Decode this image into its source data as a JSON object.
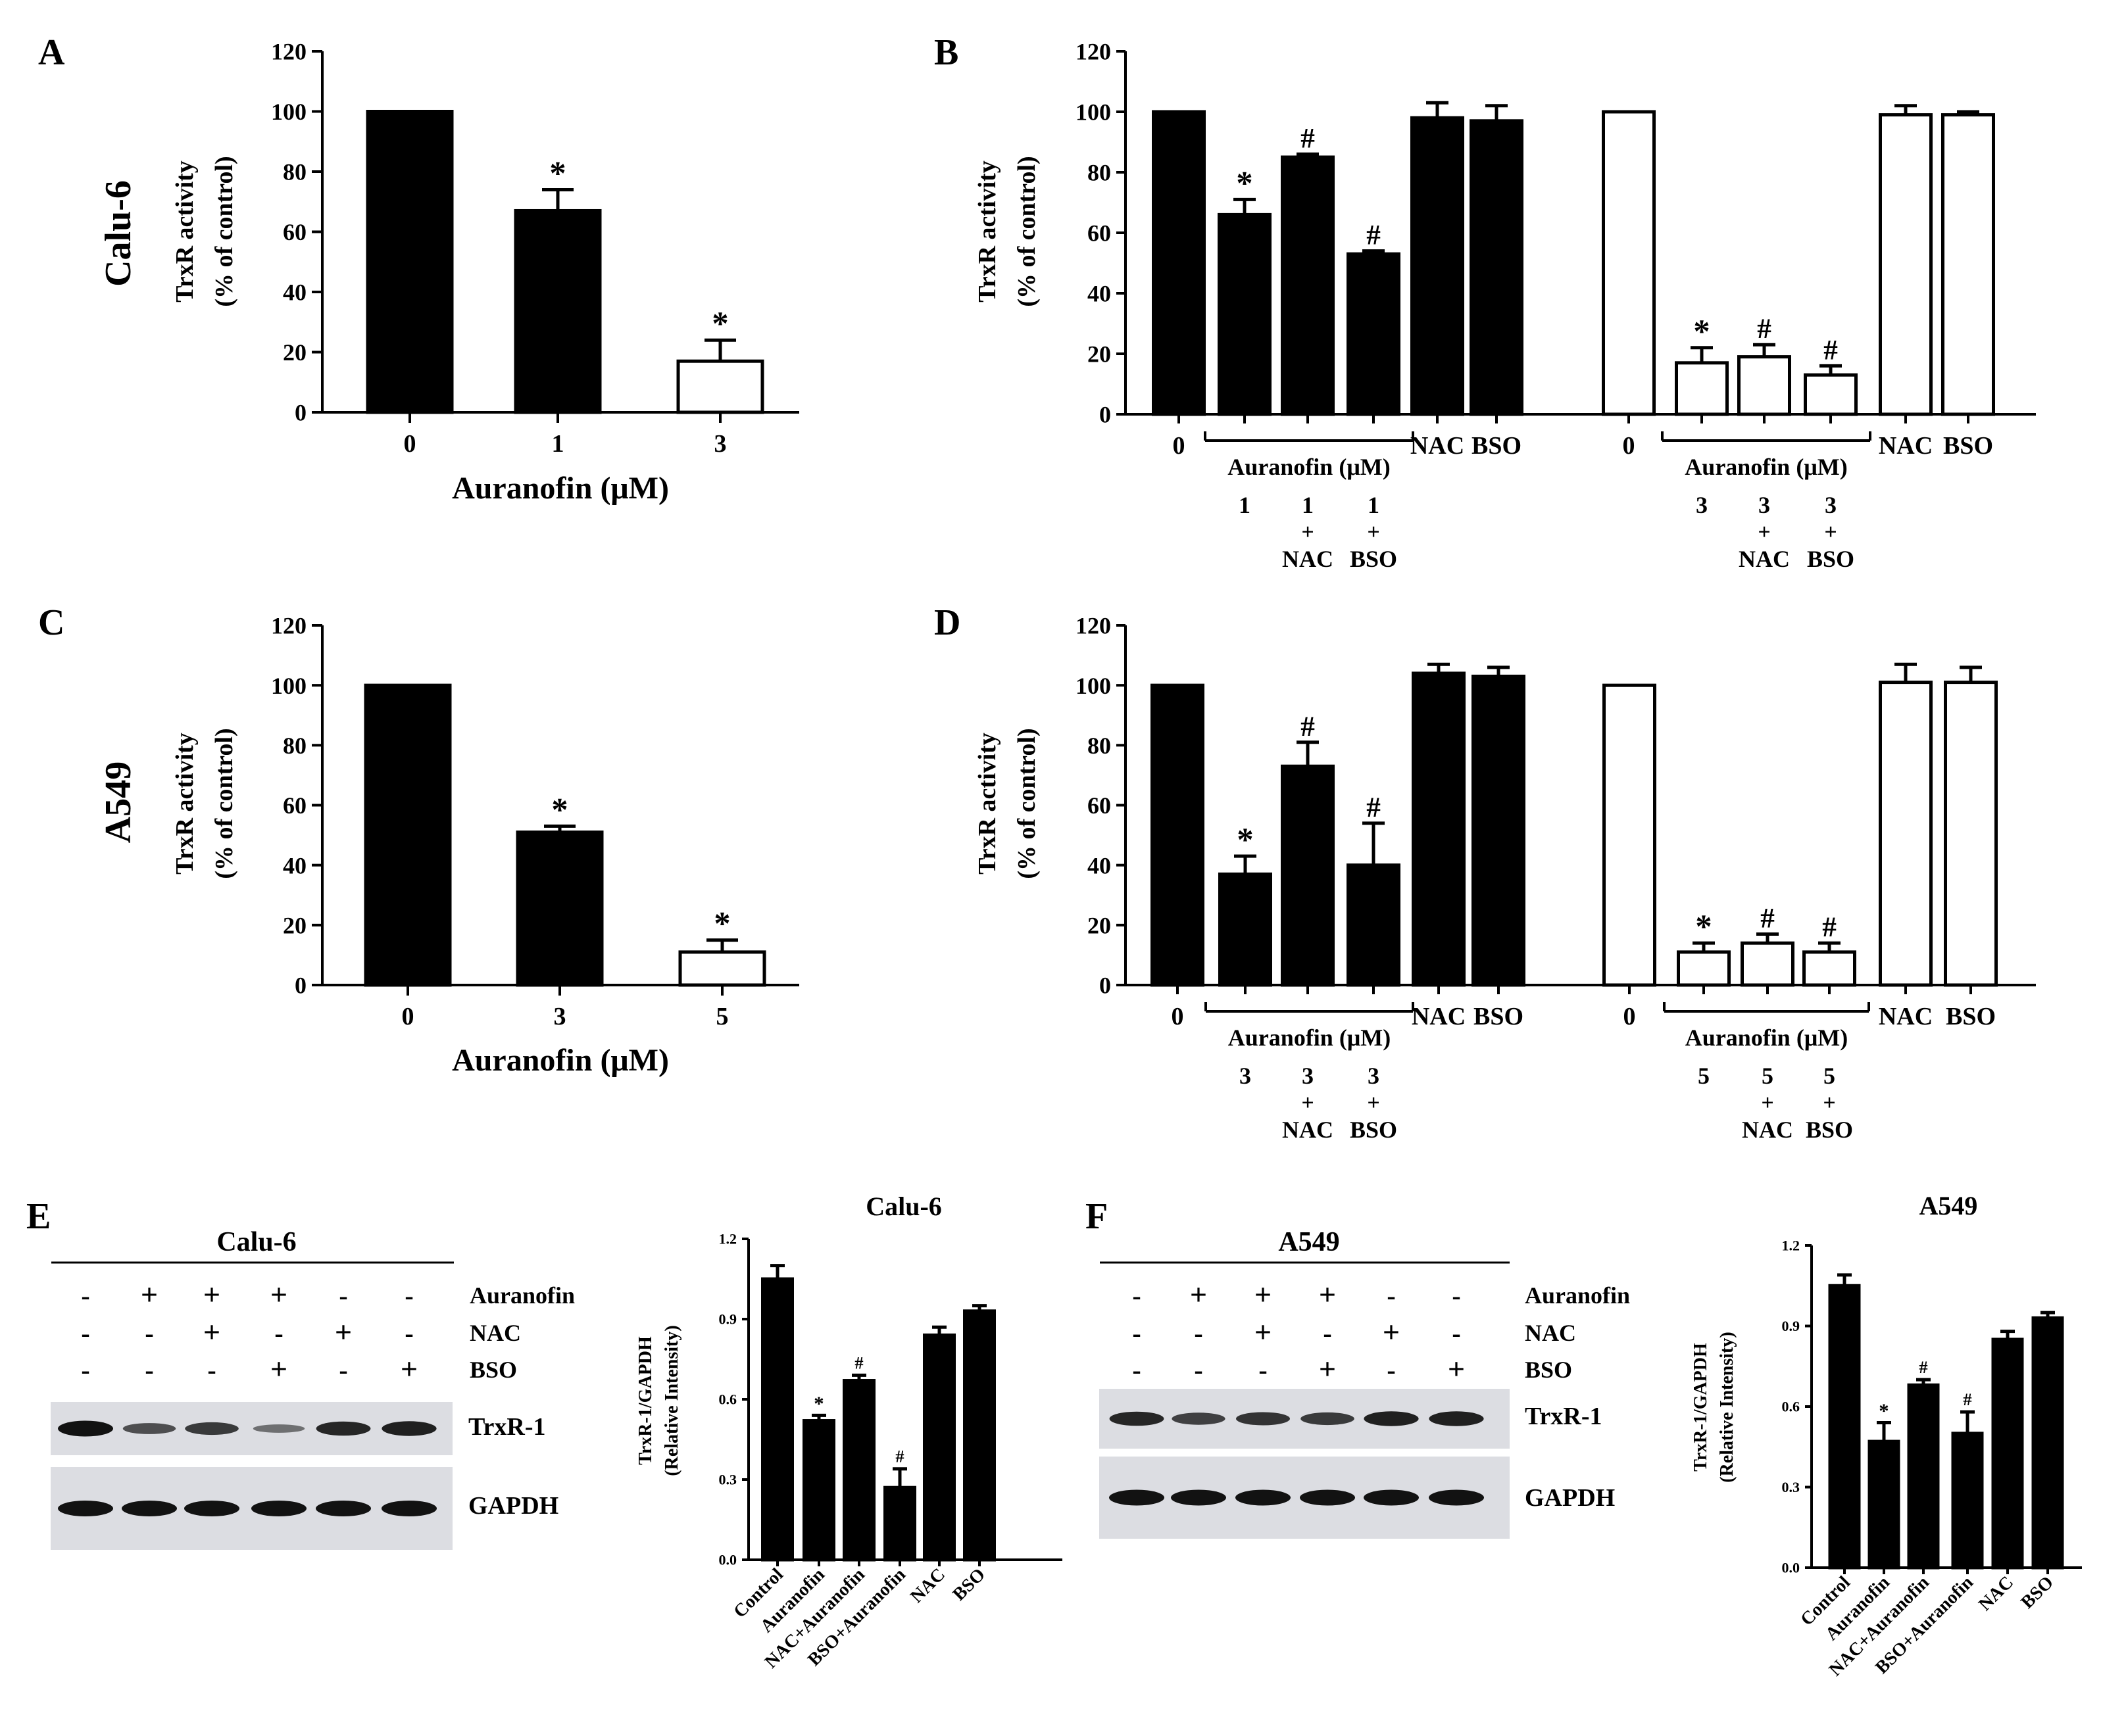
{
  "colors": {
    "black": "#000000",
    "white": "#ffffff",
    "sig": "#7a7a7a",
    "blot_bg": "#dcdde2",
    "band": "#121212"
  },
  "panel_labels": {
    "A": "A",
    "B": "B",
    "C": "C",
    "D": "D",
    "E": "E",
    "F": "F"
  },
  "row_labels": {
    "calu": "Calu-6",
    "a549": "A549"
  },
  "chart_data": [
    {
      "id": "A",
      "type": "bar",
      "ylabel": [
        "TrxR activity",
        "(% of control)"
      ],
      "xlabel": "Auranofin (μM)",
      "ylim": [
        0,
        120
      ],
      "yticks": [
        0,
        20,
        40,
        60,
        80,
        100,
        120
      ],
      "categories": [
        "0",
        "1",
        "3"
      ],
      "values": [
        100,
        67,
        17
      ],
      "errors": [
        0,
        7,
        7
      ],
      "fills": [
        "black",
        "black",
        "white"
      ],
      "marks": [
        "",
        "*",
        "*"
      ]
    },
    {
      "id": "B",
      "type": "bar",
      "ylabel": [
        "TrxR activity",
        "(% of control)"
      ],
      "ylim": [
        0,
        120
      ],
      "yticks": [
        0,
        20,
        40,
        60,
        80,
        100,
        120
      ],
      "categories": [
        "0",
        "",
        "",
        "",
        "NAC",
        "BSO",
        "0",
        "",
        "",
        "",
        "NAC",
        "BSO"
      ],
      "values": [
        100,
        66,
        85,
        53,
        98,
        97,
        100,
        17,
        19,
        13,
        99,
        99
      ],
      "errors": [
        0,
        5,
        1,
        1,
        5,
        5,
        0,
        5,
        4,
        3,
        3,
        1
      ],
      "fills": [
        "black",
        "black",
        "black",
        "black",
        "black",
        "black",
        "white",
        "white",
        "white",
        "white",
        "white",
        "white"
      ],
      "marks": [
        "",
        "*",
        "#",
        "#",
        "",
        "",
        "",
        "*",
        "#",
        "#",
        "",
        ""
      ],
      "groups": [
        {
          "label": "Auranofin (μM)",
          "dose": [
            "1",
            "1",
            "1"
          ],
          "plus": [
            "",
            "+",
            "+"
          ],
          "add": [
            "",
            "NAC",
            "BSO"
          ]
        },
        {
          "label": "Auranofin (μM)",
          "dose": [
            "3",
            "3",
            "3"
          ],
          "plus": [
            "",
            "+",
            "+"
          ],
          "add": [
            "",
            "NAC",
            "BSO"
          ]
        }
      ]
    },
    {
      "id": "C",
      "type": "bar",
      "ylabel": [
        "TrxR activity",
        "(% of control)"
      ],
      "xlabel": "Auranofin (μM)",
      "ylim": [
        0,
        120
      ],
      "yticks": [
        0,
        20,
        40,
        60,
        80,
        100,
        120
      ],
      "categories": [
        "0",
        "3",
        "5"
      ],
      "values": [
        100,
        51,
        11
      ],
      "errors": [
        0,
        2,
        4
      ],
      "fills": [
        "black",
        "black",
        "white"
      ],
      "marks": [
        "",
        "*",
        "*"
      ]
    },
    {
      "id": "D",
      "type": "bar",
      "ylabel": [
        "TrxR activity",
        "(% of control)"
      ],
      "ylim": [
        0,
        120
      ],
      "yticks": [
        0,
        20,
        40,
        60,
        80,
        100,
        120
      ],
      "categories": [
        "0",
        "",
        "",
        "",
        "NAC",
        "BSO",
        "0",
        "",
        "",
        "",
        "NAC",
        "BSO"
      ],
      "values": [
        100,
        37,
        73,
        40,
        104,
        103,
        100,
        11,
        14,
        11,
        101,
        101
      ],
      "errors": [
        0,
        6,
        8,
        14,
        3,
        3,
        0,
        3,
        3,
        3,
        6,
        5
      ],
      "fills": [
        "black",
        "black",
        "black",
        "black",
        "black",
        "black",
        "white",
        "white",
        "white",
        "white",
        "white",
        "white"
      ],
      "marks": [
        "",
        "*",
        "#",
        "#",
        "",
        "",
        "",
        "*",
        "#",
        "#",
        "",
        ""
      ],
      "groups": [
        {
          "label": "Auranofin (μM)",
          "dose": [
            "3",
            "3",
            "3"
          ],
          "plus": [
            "",
            "+",
            "+"
          ],
          "add": [
            "",
            "NAC",
            "BSO"
          ]
        },
        {
          "label": "Auranofin (μM)",
          "dose": [
            "5",
            "5",
            "5"
          ],
          "plus": [
            "",
            "+",
            "+"
          ],
          "add": [
            "",
            "NAC",
            "BSO"
          ]
        }
      ]
    },
    {
      "id": "E-chart",
      "type": "bar",
      "title": "Calu-6",
      "ylabel": [
        "TrxR-1/GAPDH",
        "(Relative Intensity)"
      ],
      "ylim": [
        0,
        1.2
      ],
      "yticks": [
        "0.0",
        "0.3",
        "0.6",
        "0.9",
        "1.2"
      ],
      "categories": [
        "Control",
        "Auranofin",
        "NAC+Auranofin",
        "BSO+Auranofin",
        "NAC",
        "BSO"
      ],
      "values": [
        1.05,
        0.52,
        0.67,
        0.27,
        0.84,
        0.93
      ],
      "errors": [
        0.05,
        0.02,
        0.02,
        0.07,
        0.03,
        0.02
      ],
      "fills": [
        "black",
        "black",
        "black",
        "black",
        "black",
        "black"
      ],
      "marks": [
        "",
        "*",
        "#",
        "#",
        "",
        ""
      ]
    },
    {
      "id": "F-chart",
      "type": "bar",
      "title": "A549",
      "ylabel": [
        "TrxR-1/GAPDH",
        "(Relative Intensity)"
      ],
      "ylim": [
        0,
        1.2
      ],
      "yticks": [
        "0.0",
        "0.3",
        "0.6",
        "0.9",
        "1.2"
      ],
      "categories": [
        "Control",
        "Auranofin",
        "NAC+Auranofin",
        "BSO+Auranofin",
        "NAC",
        "BSO"
      ],
      "values": [
        1.05,
        0.47,
        0.68,
        0.5,
        0.85,
        0.93
      ],
      "errors": [
        0.04,
        0.07,
        0.02,
        0.08,
        0.03,
        0.02
      ],
      "fills": [
        "black",
        "black",
        "black",
        "black",
        "black",
        "black"
      ],
      "marks": [
        "",
        "*",
        "#",
        "#",
        "",
        ""
      ]
    }
  ],
  "blots": [
    {
      "id": "E-blot",
      "title": "Calu-6",
      "rows": [
        {
          "label": "Auranofin",
          "signs": [
            "-",
            "+",
            "+",
            "+",
            "-",
            "-"
          ]
        },
        {
          "label": "NAC",
          "signs": [
            "-",
            "-",
            "+",
            "-",
            "+",
            "-"
          ]
        },
        {
          "label": "BSO",
          "signs": [
            "-",
            "-",
            "-",
            "+",
            "-",
            "+"
          ]
        }
      ],
      "bands": [
        {
          "label": "TrxR-1",
          "intensity": [
            1.0,
            0.55,
            0.7,
            0.3,
            0.85,
            0.9
          ]
        },
        {
          "label": "GAPDH",
          "intensity": [
            1,
            1,
            1,
            1,
            1,
            1
          ]
        }
      ]
    },
    {
      "id": "F-blot",
      "title": "A549",
      "rows": [
        {
          "label": "Auranofin",
          "signs": [
            "-",
            "+",
            "+",
            "+",
            "-",
            "-"
          ]
        },
        {
          "label": "NAC",
          "signs": [
            "-",
            "-",
            "+",
            "-",
            "+",
            "-"
          ]
        },
        {
          "label": "BSO",
          "signs": [
            "-",
            "-",
            "-",
            "+",
            "-",
            "+"
          ]
        }
      ],
      "bands": [
        {
          "label": "TrxR-1",
          "intensity": [
            0.85,
            0.65,
            0.75,
            0.7,
            0.9,
            0.9
          ]
        },
        {
          "label": "GAPDH",
          "intensity": [
            1,
            1,
            1,
            1,
            1,
            1
          ]
        }
      ]
    }
  ]
}
